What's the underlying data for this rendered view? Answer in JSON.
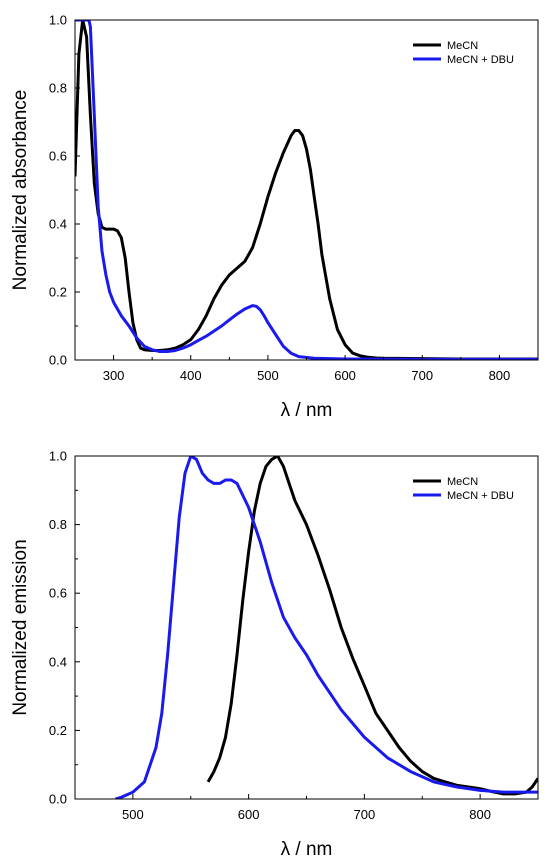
{
  "chart_data": [
    {
      "type": "line",
      "title": "",
      "xlabel": "λ / nm",
      "ylabel": "Normalized absorbance",
      "xlim": [
        250,
        850
      ],
      "ylim": [
        0,
        1.0
      ],
      "xticks": [
        300,
        400,
        500,
        600,
        700,
        800
      ],
      "yticks": [
        "0.0",
        "0.2",
        "0.4",
        "0.6",
        "0.8",
        "1.0"
      ],
      "legend_position": "top-right",
      "series": [
        {
          "name": "MeCN",
          "color": "#000000",
          "x": [
            250,
            255,
            260,
            265,
            270,
            275,
            280,
            285,
            290,
            295,
            300,
            305,
            310,
            315,
            320,
            325,
            330,
            335,
            340,
            350,
            360,
            370,
            380,
            390,
            400,
            410,
            420,
            430,
            440,
            450,
            460,
            470,
            480,
            490,
            500,
            510,
            520,
            530,
            535,
            540,
            545,
            550,
            555,
            560,
            565,
            570,
            580,
            590,
            600,
            610,
            620,
            630,
            640,
            650,
            700,
            750,
            800,
            850
          ],
          "y": [
            0.54,
            0.9,
            1.0,
            0.95,
            0.72,
            0.52,
            0.43,
            0.39,
            0.385,
            0.385,
            0.385,
            0.38,
            0.36,
            0.3,
            0.2,
            0.11,
            0.06,
            0.035,
            0.03,
            0.028,
            0.028,
            0.03,
            0.035,
            0.045,
            0.06,
            0.09,
            0.13,
            0.18,
            0.22,
            0.25,
            0.27,
            0.29,
            0.33,
            0.4,
            0.48,
            0.55,
            0.61,
            0.66,
            0.675,
            0.675,
            0.66,
            0.62,
            0.56,
            0.48,
            0.4,
            0.31,
            0.18,
            0.09,
            0.045,
            0.02,
            0.012,
            0.008,
            0.006,
            0.005,
            0.004,
            0.003,
            0.003,
            0.003
          ]
        },
        {
          "name": "MeCN + DBU",
          "color": "#1a1aee",
          "x": [
            250,
            255,
            260,
            265,
            268,
            270,
            275,
            280,
            285,
            290,
            295,
            300,
            310,
            320,
            330,
            340,
            350,
            360,
            370,
            380,
            390,
            400,
            410,
            420,
            430,
            440,
            450,
            460,
            470,
            480,
            485,
            490,
            495,
            500,
            510,
            520,
            530,
            540,
            560,
            600,
            700,
            800,
            850
          ],
          "y": [
            1.0,
            1.0,
            1.0,
            1.0,
            1.0,
            0.98,
            0.72,
            0.45,
            0.32,
            0.25,
            0.2,
            0.17,
            0.13,
            0.1,
            0.065,
            0.04,
            0.03,
            0.025,
            0.025,
            0.028,
            0.035,
            0.045,
            0.058,
            0.07,
            0.085,
            0.1,
            0.118,
            0.135,
            0.15,
            0.16,
            0.158,
            0.148,
            0.13,
            0.11,
            0.075,
            0.04,
            0.02,
            0.01,
            0.005,
            0.003,
            0.002,
            0.002,
            0.002
          ]
        }
      ]
    },
    {
      "type": "line",
      "title": "",
      "xlabel": "λ / nm",
      "ylabel": "Normalized emission",
      "xlim": [
        450,
        850
      ],
      "ylim": [
        0,
        1.0
      ],
      "xticks": [
        500,
        600,
        700,
        800
      ],
      "yticks": [
        "0.0",
        "0.2",
        "0.4",
        "0.6",
        "0.8",
        "1.0"
      ],
      "legend_position": "top-right",
      "series": [
        {
          "name": "MeCN",
          "color": "#000000",
          "x": [
            565,
            570,
            575,
            580,
            585,
            590,
            595,
            600,
            605,
            610,
            615,
            620,
            625,
            630,
            635,
            640,
            650,
            660,
            670,
            680,
            690,
            700,
            710,
            720,
            730,
            740,
            750,
            760,
            770,
            780,
            790,
            800,
            810,
            820,
            830,
            840,
            845,
            850
          ],
          "y": [
            0.05,
            0.08,
            0.12,
            0.18,
            0.28,
            0.42,
            0.58,
            0.72,
            0.84,
            0.92,
            0.97,
            0.99,
            1.0,
            0.97,
            0.92,
            0.87,
            0.8,
            0.71,
            0.61,
            0.5,
            0.41,
            0.33,
            0.25,
            0.2,
            0.15,
            0.11,
            0.08,
            0.06,
            0.05,
            0.04,
            0.035,
            0.03,
            0.022,
            0.015,
            0.015,
            0.02,
            0.035,
            0.06
          ]
        },
        {
          "name": "MeCN + DBU",
          "color": "#1a1aee",
          "x": [
            485,
            490,
            500,
            510,
            520,
            525,
            530,
            535,
            540,
            545,
            550,
            555,
            560,
            565,
            570,
            575,
            580,
            585,
            590,
            600,
            610,
            620,
            630,
            640,
            650,
            660,
            670,
            680,
            690,
            700,
            720,
            740,
            760,
            780,
            800,
            820,
            840,
            850
          ],
          "y": [
            0.0,
            0.005,
            0.02,
            0.05,
            0.15,
            0.25,
            0.42,
            0.62,
            0.82,
            0.95,
            1.0,
            0.99,
            0.95,
            0.93,
            0.92,
            0.92,
            0.93,
            0.93,
            0.92,
            0.85,
            0.75,
            0.63,
            0.53,
            0.47,
            0.42,
            0.36,
            0.31,
            0.26,
            0.22,
            0.18,
            0.12,
            0.08,
            0.05,
            0.035,
            0.025,
            0.02,
            0.02,
            0.02
          ]
        }
      ]
    }
  ]
}
